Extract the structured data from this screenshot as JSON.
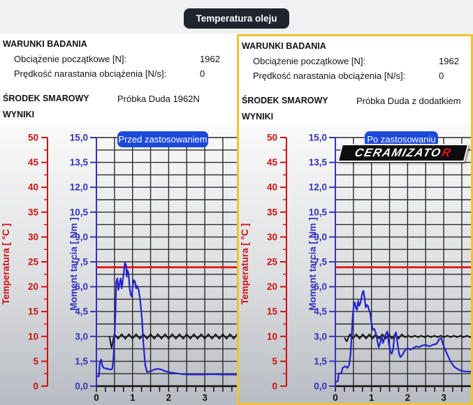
{
  "page": {
    "title_badge": "Temperatura oleju"
  },
  "colors": {
    "accent_border_yellow": "#f1c232",
    "overlay_badge_blue": "#1d49d8",
    "title_badge_bg": "#20242e",
    "temperature_axis_red": "#cc1111",
    "torque_axis_blue": "#3333b8",
    "oil_temperature_line_red": "#e60000",
    "torque_curve_blue": "#2222cd",
    "reference_line_black": "#161616",
    "logo_accent_red": "#e21414"
  },
  "panels": [
    {
      "conditions_title": "WARUNKI BADANIA",
      "rows": [
        {
          "label": "Obciążenie początkowe [N]:",
          "value": "1962"
        },
        {
          "label": "Prędkość narastania obciążenia [N/s]:",
          "value": "0"
        }
      ],
      "lubricant_label": "ŚRODEK SMAROWY",
      "lubricant_value": "Próbka Duda 1962N",
      "results_label": "WYNIKI",
      "overlay_badge": "Przed zastosowaniem"
    },
    {
      "conditions_title": "WARUNKI BADANIA",
      "rows": [
        {
          "label": "Obciążenie początkowe [N]:",
          "value": "1962"
        },
        {
          "label": "Prędkość narastania obciążenia [N/s]:",
          "value": "0"
        }
      ],
      "lubricant_label": "ŚRODEK SMAROWY",
      "lubricant_value": "Próbka Duda z dodatkiem",
      "results_label": "WYNIKI",
      "overlay_badge": "Po zastosowaniu",
      "logo": {
        "text": "CERAMIZATO",
        "accent": "R"
      }
    }
  ],
  "chart_data": [
    {
      "type": "line",
      "title": "Przed zastosowaniem",
      "x_axis": {
        "range": [
          0,
          3.8
        ],
        "major_tick_step": 1,
        "minor_tick_step": 0.25,
        "gridline_step": 0.5,
        "tick_labels": [
          "0",
          "1",
          "2",
          "3"
        ]
      },
      "y_axis_temperature": {
        "label": "Temperatura [ °C ]",
        "range": [
          0,
          50
        ],
        "label_step": 5,
        "minor_tick_step": 2.5,
        "color": "#cc1111",
        "tick_labels": [
          "0",
          "5",
          "10",
          "15",
          "20",
          "25",
          "30",
          "35",
          "40",
          "45",
          "50"
        ]
      },
      "y_axis_torque": {
        "label": "Moment tarcia [ Nm ]",
        "range": [
          0,
          15
        ],
        "label_step": 1.5,
        "gridline_step": 0.75,
        "color": "#3333b8",
        "tick_labels": [
          "0,0",
          "1,5",
          "3,0",
          "4,5",
          "6,0",
          "7,5",
          "9,0",
          "10,5",
          "12,0",
          "13,5",
          "15,0"
        ]
      },
      "series": [
        {
          "name": "temperatura-oleju",
          "axis": "temperature",
          "type": "constant",
          "color": "#e60000",
          "value_c": 23.9
        },
        {
          "name": "linia-odniesienia",
          "axis": "torque",
          "type": "oscillating",
          "color": "#161616",
          "params": {
            "lead_in": [
              [
                0.36,
                3.0
              ],
              [
                0.42,
                2.3
              ]
            ],
            "ramp_end_x": 0.5,
            "baseline": 3.0,
            "amplitude": 0.14,
            "period": 0.2,
            "end_x": 3.95
          }
        },
        {
          "name": "moment-tarcia",
          "axis": "torque",
          "type": "points",
          "color": "#2222cd",
          "points": [
            [
              0,
              0.6
            ],
            [
              0.07,
              0.6
            ],
            [
              0.09,
              1.35
            ],
            [
              0.13,
              1.6
            ],
            [
              0.16,
              1.25
            ],
            [
              0.2,
              1.1
            ],
            [
              0.3,
              1.05
            ],
            [
              0.38,
              1.0
            ],
            [
              0.44,
              1.05
            ],
            [
              0.47,
              1.6
            ],
            [
              0.5,
              2.8
            ],
            [
              0.53,
              4.6
            ],
            [
              0.55,
              6.3
            ],
            [
              0.58,
              6.5
            ],
            [
              0.61,
              5.8
            ],
            [
              0.64,
              6.2
            ],
            [
              0.67,
              6.5
            ],
            [
              0.7,
              5.9
            ],
            [
              0.73,
              6.4
            ],
            [
              0.76,
              6.9
            ],
            [
              0.79,
              7.45
            ],
            [
              0.82,
              7.3
            ],
            [
              0.84,
              6.6
            ],
            [
              0.86,
              7.0
            ],
            [
              0.89,
              6.8
            ],
            [
              0.92,
              5.9
            ],
            [
              0.95,
              5.5
            ],
            [
              0.98,
              5.4
            ],
            [
              1.01,
              6.1
            ],
            [
              1.04,
              6.4
            ],
            [
              1.07,
              6.3
            ],
            [
              1.1,
              5.9
            ],
            [
              1.13,
              6.05
            ],
            [
              1.17,
              5.8
            ],
            [
              1.21,
              5.2
            ],
            [
              1.26,
              4.1
            ],
            [
              1.3,
              2.6
            ],
            [
              1.35,
              1.3
            ],
            [
              1.4,
              0.85
            ],
            [
              1.5,
              0.9
            ],
            [
              1.6,
              1.0
            ],
            [
              1.7,
              1.05
            ],
            [
              1.8,
              1.0
            ],
            [
              1.9,
              0.9
            ],
            [
              2.05,
              0.82
            ],
            [
              2.2,
              0.78
            ],
            [
              2.4,
              0.72
            ],
            [
              2.6,
              0.7
            ],
            [
              2.9,
              0.7
            ],
            [
              3.2,
              0.72
            ],
            [
              3.5,
              0.7
            ],
            [
              3.9,
              0.7
            ]
          ]
        }
      ]
    },
    {
      "type": "line",
      "title": "Po zastosowaniu",
      "x_axis": {
        "range": [
          0,
          3.8
        ],
        "major_tick_step": 1,
        "minor_tick_step": 0.25,
        "gridline_step": 0.5,
        "tick_labels": [
          "0",
          "1",
          "2",
          "3"
        ]
      },
      "y_axis_temperature": {
        "label": "Temperatura [ °C ]",
        "range": [
          0,
          50
        ],
        "label_step": 5,
        "minor_tick_step": 2.5,
        "color": "#cc1111",
        "tick_labels": [
          "0",
          "5",
          "10",
          "15",
          "20",
          "25",
          "30",
          "35",
          "40",
          "45",
          "50"
        ]
      },
      "y_axis_torque": {
        "label": "Moment tarcia [ Nm ]",
        "range": [
          0,
          15
        ],
        "label_step": 1.5,
        "gridline_step": 0.75,
        "color": "#3333b8",
        "tick_labels": [
          "0,0",
          "1,5",
          "3,0",
          "4,5",
          "6,0",
          "7,5",
          "9,0",
          "10,5",
          "12,0",
          "13,5",
          "15,0"
        ]
      },
      "series": [
        {
          "name": "temperatura-oleju",
          "axis": "temperature",
          "type": "constant",
          "color": "#e60000",
          "value_c": 23.9
        },
        {
          "name": "linia-odniesienia",
          "axis": "torque",
          "type": "oscillating",
          "color": "#161616",
          "params": {
            "lead_in": [
              [
                0.26,
                2.9
              ],
              [
                0.32,
                2.7
              ]
            ],
            "ramp_end_x": 0.4,
            "baseline": 3.0,
            "amplitude": 0.13,
            "period": 0.18,
            "end_x": 3.95,
            "damp_after_x": 1.9,
            "damp_amplitude": 0.05
          }
        },
        {
          "name": "moment-tarcia",
          "axis": "torque",
          "type": "points",
          "color": "#2222cd",
          "points": [
            [
              0,
              0.25
            ],
            [
              0.07,
              0.3
            ],
            [
              0.09,
              0.75
            ],
            [
              0.17,
              0.8
            ],
            [
              0.2,
              1.1
            ],
            [
              0.28,
              1.2
            ],
            [
              0.33,
              1.1
            ],
            [
              0.38,
              1.25
            ],
            [
              0.42,
              1.9
            ],
            [
              0.45,
              3.0
            ],
            [
              0.48,
              4.2
            ],
            [
              0.51,
              4.9
            ],
            [
              0.54,
              5.05
            ],
            [
              0.57,
              4.7
            ],
            [
              0.6,
              4.6
            ],
            [
              0.63,
              5.15
            ],
            [
              0.66,
              4.85
            ],
            [
              0.69,
              5.0
            ],
            [
              0.72,
              5.3
            ],
            [
              0.75,
              5.65
            ],
            [
              0.78,
              5.75
            ],
            [
              0.81,
              5.3
            ],
            [
              0.84,
              4.75
            ],
            [
              0.87,
              4.9
            ],
            [
              0.9,
              4.85
            ],
            [
              0.93,
              4.6
            ],
            [
              0.96,
              4.45
            ],
            [
              1.0,
              3.8
            ],
            [
              1.04,
              3.4
            ],
            [
              1.08,
              3.45
            ],
            [
              1.12,
              3.2
            ],
            [
              1.16,
              2.75
            ],
            [
              1.2,
              2.35
            ],
            [
              1.24,
              2.6
            ],
            [
              1.28,
              3.0
            ],
            [
              1.32,
              2.6
            ],
            [
              1.36,
              2.9
            ],
            [
              1.4,
              3.15
            ],
            [
              1.44,
              3.3
            ],
            [
              1.48,
              2.6
            ],
            [
              1.52,
              2.1
            ],
            [
              1.56,
              1.95
            ],
            [
              1.6,
              2.25
            ],
            [
              1.64,
              3.1
            ],
            [
              1.68,
              3.25
            ],
            [
              1.72,
              2.6
            ],
            [
              1.76,
              2.0
            ],
            [
              1.8,
              1.75
            ],
            [
              1.86,
              1.9
            ],
            [
              1.92,
              2.15
            ],
            [
              2.0,
              2.3
            ],
            [
              2.08,
              2.2
            ],
            [
              2.16,
              2.3
            ],
            [
              2.24,
              2.4
            ],
            [
              2.32,
              2.35
            ],
            [
              2.4,
              2.45
            ],
            [
              2.5,
              2.5
            ],
            [
              2.6,
              2.4
            ],
            [
              2.7,
              2.5
            ],
            [
              2.8,
              2.55
            ],
            [
              2.88,
              2.85
            ],
            [
              2.93,
              2.9
            ],
            [
              3.0,
              2.4
            ],
            [
              3.1,
              1.9
            ],
            [
              3.2,
              1.45
            ],
            [
              3.3,
              1.15
            ],
            [
              3.45,
              0.95
            ],
            [
              3.6,
              0.88
            ],
            [
              3.95,
              0.88
            ]
          ]
        }
      ]
    }
  ]
}
